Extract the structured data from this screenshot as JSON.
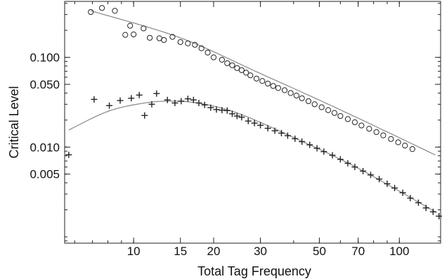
{
  "chart_data": {
    "type": "scatter",
    "title": "",
    "xlabel": "Total Tag Frequency",
    "ylabel": "Critical Level",
    "xscale": "log",
    "yscale": "log",
    "xlim": [
      5.5,
      143
    ],
    "ylim": [
      0.00085,
      0.42
    ],
    "grid": false,
    "x_ticks": [
      10,
      15,
      20,
      30,
      50,
      70,
      100
    ],
    "x_tick_labels": [
      "10",
      "15",
      "20",
      "30",
      "50",
      "70",
      "100"
    ],
    "y_ticks": [
      0.1,
      0.05,
      0.01,
      0.005
    ],
    "y_tick_labels": [
      "0.100",
      "0.050",
      "0.010",
      "0.005"
    ],
    "series": [
      {
        "marker": "circle",
        "color": "#222222",
        "points": [
          [
            6.9,
            0.32
          ],
          [
            7.6,
            0.355
          ],
          [
            8.5,
            0.33
          ],
          [
            9.3,
            0.178
          ],
          [
            9.7,
            0.225
          ],
          [
            10.0,
            0.18
          ],
          [
            10.9,
            0.21
          ],
          [
            11.5,
            0.165
          ],
          [
            12.5,
            0.163
          ],
          [
            13.0,
            0.156
          ],
          [
            14.0,
            0.169
          ],
          [
            15.0,
            0.148
          ],
          [
            16.0,
            0.143
          ],
          [
            17.0,
            0.138
          ],
          [
            18.0,
            0.126
          ],
          [
            19.0,
            0.113
          ],
          [
            20.0,
            0.1
          ],
          [
            21.5,
            0.094
          ],
          [
            22.5,
            0.086
          ],
          [
            23.5,
            0.0815
          ],
          [
            24.5,
            0.076
          ],
          [
            25.5,
            0.072
          ],
          [
            26.5,
            0.0675
          ],
          [
            27.5,
            0.063
          ],
          [
            29.0,
            0.058
          ],
          [
            30.5,
            0.0545
          ],
          [
            32.0,
            0.051
          ],
          [
            33.5,
            0.048
          ],
          [
            35.0,
            0.0455
          ],
          [
            37.0,
            0.043
          ],
          [
            39.0,
            0.04
          ],
          [
            41.0,
            0.0375
          ],
          [
            43.0,
            0.035
          ],
          [
            45.5,
            0.0325
          ],
          [
            48.0,
            0.03
          ],
          [
            51.0,
            0.0278
          ],
          [
            54.0,
            0.0258
          ],
          [
            57.0,
            0.024
          ],
          [
            60.0,
            0.0222
          ],
          [
            64.0,
            0.0205
          ],
          [
            68.0,
            0.0189
          ],
          [
            72.0,
            0.0174
          ],
          [
            77.0,
            0.016
          ],
          [
            82.0,
            0.0147
          ],
          [
            87.0,
            0.0135
          ],
          [
            93.0,
            0.0123
          ],
          [
            99.0,
            0.0113
          ],
          [
            105.0,
            0.0104
          ],
          [
            112.0,
            0.0095
          ]
        ],
        "fit": [
          [
            6.9,
            0.33
          ],
          [
            15,
            0.165
          ],
          [
            30,
            0.066
          ],
          [
            60,
            0.026
          ],
          [
            140,
            0.0079
          ]
        ]
      },
      {
        "marker": "plus",
        "color": "#222222",
        "points": [
          [
            5.7,
            0.0082
          ],
          [
            7.1,
            0.034
          ],
          [
            8.1,
            0.029
          ],
          [
            8.9,
            0.033
          ],
          [
            9.8,
            0.035
          ],
          [
            10.5,
            0.038
          ],
          [
            11.0,
            0.0225
          ],
          [
            11.7,
            0.03
          ],
          [
            12.2,
            0.0395
          ],
          [
            13.4,
            0.0335
          ],
          [
            14.3,
            0.031
          ],
          [
            15.1,
            0.0325
          ],
          [
            16.0,
            0.0345
          ],
          [
            16.8,
            0.0335
          ],
          [
            17.6,
            0.031
          ],
          [
            18.5,
            0.0295
          ],
          [
            19.5,
            0.0275
          ],
          [
            20.5,
            0.0262
          ],
          [
            21.5,
            0.0258
          ],
          [
            22.5,
            0.0255
          ],
          [
            23.5,
            0.0235
          ],
          [
            24.5,
            0.0222
          ],
          [
            25.5,
            0.0215
          ],
          [
            27.0,
            0.0195
          ],
          [
            28.5,
            0.0185
          ],
          [
            30.0,
            0.0175
          ],
          [
            32.0,
            0.0162
          ],
          [
            34.0,
            0.0152
          ],
          [
            36.0,
            0.0143
          ],
          [
            38.0,
            0.0134
          ],
          [
            40.5,
            0.0124
          ],
          [
            43.0,
            0.0115
          ],
          [
            46.0,
            0.0106
          ],
          [
            49.0,
            0.0097
          ],
          [
            52.0,
            0.0089
          ],
          [
            56.0,
            0.0081
          ],
          [
            60.0,
            0.0073
          ],
          [
            64.0,
            0.0066
          ],
          [
            68.0,
            0.006
          ],
          [
            73.0,
            0.0054
          ],
          [
            78.0,
            0.0049
          ],
          [
            84.0,
            0.0044
          ],
          [
            90.0,
            0.0039
          ],
          [
            96.0,
            0.0035
          ],
          [
            103.0,
            0.0031
          ],
          [
            110.0,
            0.0027
          ],
          [
            118.0,
            0.0024
          ],
          [
            126.0,
            0.0021
          ],
          [
            134.0,
            0.0019
          ],
          [
            141.0,
            0.0017
          ]
        ],
        "fit": [
          [
            5.7,
            0.0155
          ],
          [
            8,
            0.025
          ],
          [
            11,
            0.031
          ],
          [
            14,
            0.0325
          ],
          [
            18,
            0.0305
          ],
          [
            25,
            0.0235
          ],
          [
            40,
            0.0128
          ],
          [
            70,
            0.0058
          ],
          [
            141,
            0.0018
          ]
        ]
      }
    ]
  }
}
